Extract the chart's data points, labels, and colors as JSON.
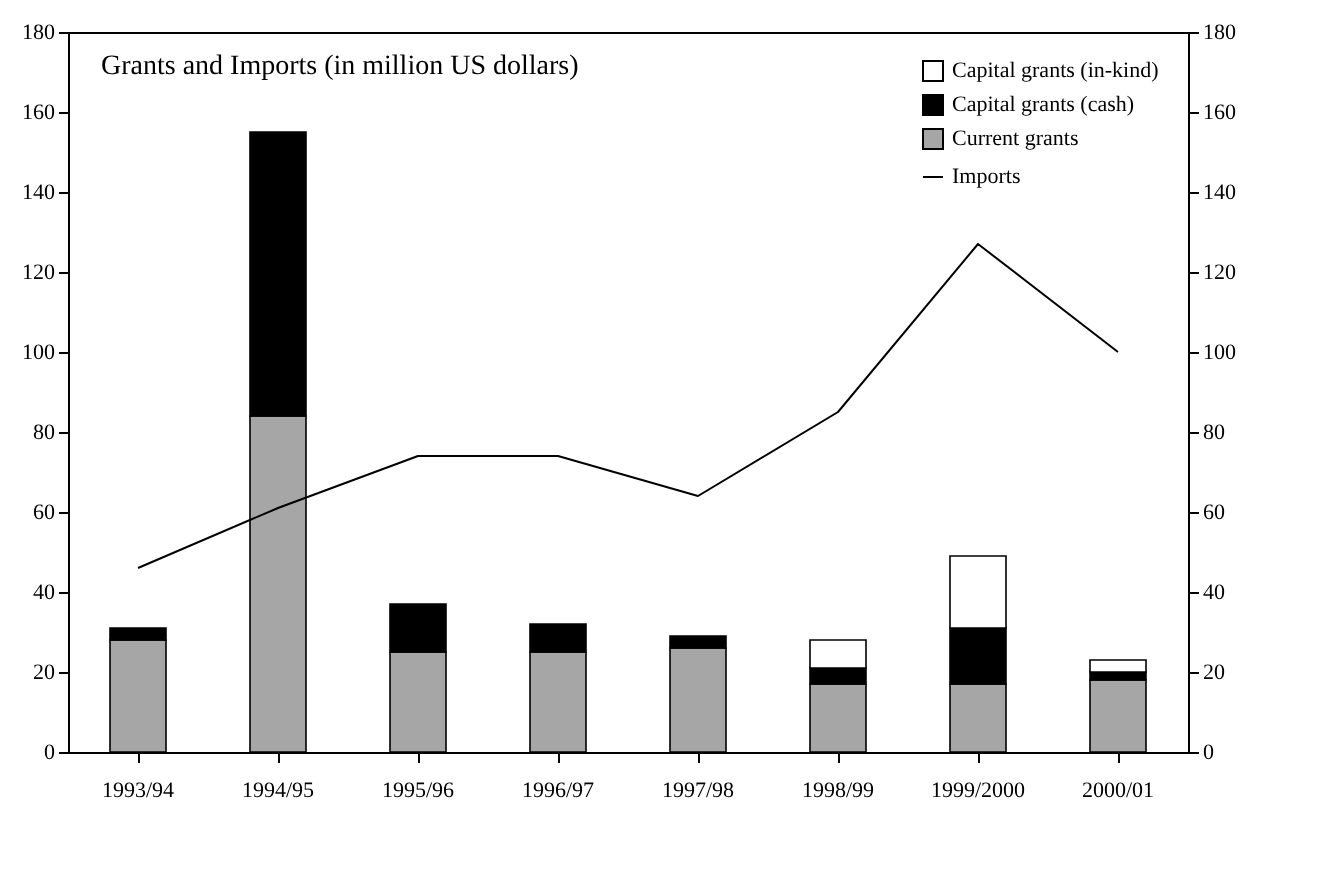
{
  "chart_data": {
    "type": "bar",
    "title": "Grants and Imports (in million US dollars)",
    "categories": [
      "1993/94",
      "1994/95",
      "1995/96",
      "1996/97",
      "1997/98",
      "1998/99",
      "1999/2000",
      "2000/01"
    ],
    "stacked": true,
    "series": [
      {
        "name": "Current grants",
        "color": "#a6a6a6",
        "values": [
          28,
          84,
          25,
          25,
          26,
          17,
          17,
          18
        ]
      },
      {
        "name": "Capital grants (cash)",
        "color": "#000000",
        "values": [
          3,
          71,
          12,
          7,
          3,
          4,
          14,
          2
        ]
      },
      {
        "name": "Capital grants (in-kind)",
        "color": "#ffffff",
        "values": [
          null,
          null,
          null,
          null,
          null,
          7,
          18,
          3
        ]
      },
      {
        "name": "Imports",
        "type": "line",
        "axis": "y2",
        "color": "#000000",
        "values": [
          46,
          61,
          74,
          74,
          64,
          85,
          127,
          100
        ]
      }
    ],
    "ylim": [
      0,
      180
    ],
    "yticks": [
      0,
      20,
      40,
      60,
      80,
      100,
      120,
      140,
      160,
      180
    ],
    "y2lim": [
      0,
      180
    ],
    "y2ticks": [
      0,
      20,
      40,
      60,
      80,
      100,
      120,
      140,
      160,
      180
    ],
    "legend": "top right",
    "grid": false,
    "marker": "none",
    "line_style": "solid"
  }
}
